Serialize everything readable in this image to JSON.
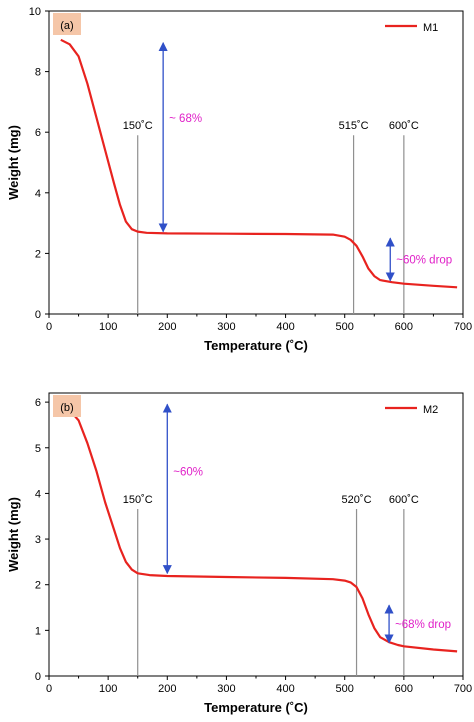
{
  "chart_data": [
    {
      "type": "line",
      "panel_label": "(a)",
      "xlabel": "Temperature (˚C)",
      "ylabel": "Weight (mg)",
      "xlim": [
        0,
        700
      ],
      "ylim": [
        0,
        10
      ],
      "x_ticks": [
        0,
        100,
        200,
        300,
        400,
        500,
        600,
        700
      ],
      "y_ticks": [
        0,
        2,
        4,
        6,
        8,
        10
      ],
      "legend_position": "top-right",
      "series": [
        {
          "name": "M1",
          "color": "#e8231f",
          "x": [
            20,
            35,
            50,
            65,
            80,
            95,
            110,
            120,
            130,
            140,
            150,
            165,
            200,
            300,
            400,
            480,
            500,
            510,
            520,
            530,
            540,
            550,
            560,
            580,
            600,
            650,
            690
          ],
          "y": [
            9.05,
            8.9,
            8.5,
            7.6,
            6.5,
            5.4,
            4.3,
            3.6,
            3.05,
            2.8,
            2.72,
            2.68,
            2.66,
            2.65,
            2.64,
            2.62,
            2.55,
            2.45,
            2.25,
            1.9,
            1.5,
            1.25,
            1.12,
            1.05,
            1.0,
            0.93,
            0.88
          ]
        }
      ],
      "vertical_lines": [
        {
          "x": 150,
          "label": "150˚C"
        },
        {
          "x": 515,
          "label": "515˚C"
        },
        {
          "x": 600,
          "label": "600˚C"
        }
      ],
      "arrows": [
        {
          "x": 193,
          "y_from": 8.95,
          "y_to": 2.72,
          "label": "~ 68%"
        },
        {
          "x": 577,
          "y_from": 2.5,
          "y_to": 1.1,
          "label": "~60% drop"
        }
      ]
    },
    {
      "type": "line",
      "panel_label": "(b)",
      "xlabel": "Temperature (˚C)",
      "ylabel": "Weight (mg)",
      "xlim": [
        0,
        700
      ],
      "ylim": [
        0,
        6.2
      ],
      "x_ticks": [
        0,
        100,
        200,
        300,
        400,
        500,
        600,
        700
      ],
      "y_ticks": [
        0,
        1,
        2,
        3,
        4,
        5,
        6
      ],
      "legend_position": "top-right",
      "series": [
        {
          "name": "M2",
          "color": "#e8231f",
          "x": [
            20,
            35,
            50,
            65,
            80,
            95,
            110,
            120,
            130,
            140,
            150,
            170,
            200,
            300,
            400,
            480,
            500,
            510,
            520,
            530,
            540,
            550,
            560,
            575,
            590,
            600,
            650,
            690
          ],
          "y": [
            5.92,
            5.82,
            5.6,
            5.1,
            4.5,
            3.8,
            3.2,
            2.8,
            2.5,
            2.33,
            2.25,
            2.21,
            2.19,
            2.17,
            2.15,
            2.12,
            2.09,
            2.05,
            1.95,
            1.7,
            1.35,
            1.05,
            0.85,
            0.74,
            0.68,
            0.65,
            0.58,
            0.54
          ]
        }
      ],
      "vertical_lines": [
        {
          "x": 150,
          "label": "150˚C"
        },
        {
          "x": 520,
          "label": "520˚C"
        },
        {
          "x": 600,
          "label": "600˚C"
        }
      ],
      "arrows": [
        {
          "x": 200,
          "y_from": 5.95,
          "y_to": 2.25,
          "label": "~60%"
        },
        {
          "x": 575,
          "y_from": 1.55,
          "y_to": 0.73,
          "label": "~68% drop"
        }
      ]
    }
  ],
  "style": {
    "arrow_color": "#3050c8",
    "annotation_color": "#e020c8",
    "vline_color": "#909090",
    "panel_label_bg": "#f5c6a8"
  }
}
